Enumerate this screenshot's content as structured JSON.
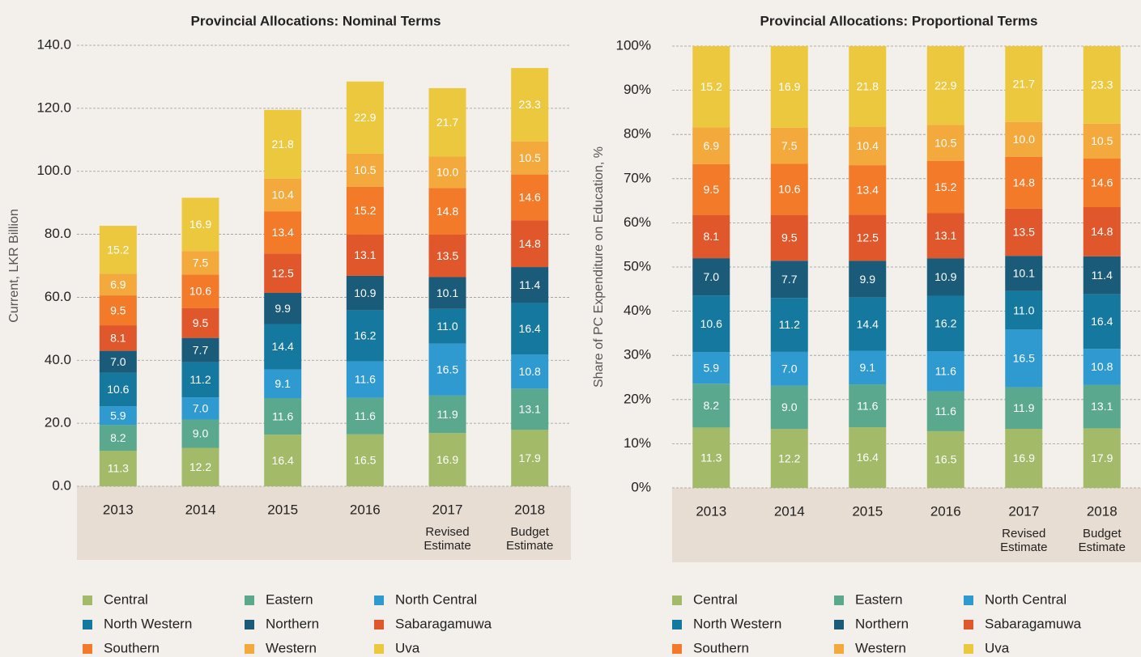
{
  "chart_data": [
    {
      "type": "bar",
      "stacking": "normal",
      "title": "Provincial Allocations: Nominal Terms",
      "y_label": "Current, LKR Billion",
      "categories": [
        "2013",
        "2014",
        "2015",
        "2016",
        "2017",
        "2018"
      ],
      "category_notes": [
        null,
        null,
        null,
        null,
        "Revised Estimate",
        "Budget Estimate"
      ],
      "ylim": [
        0,
        140
      ],
      "yticks": [
        {
          "value": 0,
          "label": "0.0"
        },
        {
          "value": 20,
          "label": "20.0"
        },
        {
          "value": 40,
          "label": "40.0"
        },
        {
          "value": 60,
          "label": "60.0"
        },
        {
          "value": 80,
          "label": "80.0"
        },
        {
          "value": 100,
          "label": "100.0"
        },
        {
          "value": 120,
          "label": "120.0"
        },
        {
          "value": 140,
          "label": "140.0"
        }
      ],
      "grid": true,
      "legend": "bottom",
      "series": [
        {
          "name": "Central",
          "color": "#a3bb68",
          "values": [
            11.3,
            12.2,
            16.4,
            16.5,
            16.9,
            17.9
          ],
          "value_labels": [
            "11.3",
            "12.2",
            "16.4",
            "16.5",
            "16.9",
            "17.9"
          ]
        },
        {
          "name": "Eastern",
          "color": "#5aa88e",
          "values": [
            8.2,
            9.0,
            11.6,
            11.6,
            11.9,
            13.1
          ],
          "value_labels": [
            "8.2",
            "9.0",
            "11.6",
            "11.6",
            "11.9",
            "13.1"
          ]
        },
        {
          "name": "North Central",
          "color": "#2e9ad0",
          "values": [
            5.9,
            7.0,
            9.1,
            11.6,
            16.5,
            10.8
          ],
          "value_labels": [
            "5.9",
            "7.0",
            "9.1",
            "11.6",
            "16.5",
            "10.8"
          ]
        },
        {
          "name": "North Western",
          "color": "#15789f",
          "values": [
            10.6,
            11.2,
            14.4,
            16.2,
            11.0,
            16.4
          ],
          "value_labels": [
            "10.6",
            "11.2",
            "14.4",
            "16.2",
            "11.0",
            "16.4"
          ]
        },
        {
          "name": "Northern",
          "color": "#1b5b7a",
          "values": [
            7.0,
            7.7,
            9.9,
            10.9,
            10.1,
            11.4
          ],
          "value_labels": [
            "7.0",
            "7.7",
            "9.9",
            "10.9",
            "10.1",
            "11.4"
          ]
        },
        {
          "name": "Sabaragamuwa",
          "color": "#e0572b",
          "values": [
            8.1,
            9.5,
            12.5,
            13.1,
            13.5,
            14.8
          ],
          "value_labels": [
            "8.1",
            "9.5",
            "12.5",
            "13.1",
            "13.5",
            "14.8"
          ]
        },
        {
          "name": "Southern",
          "color": "#f27a29",
          "values": [
            9.5,
            10.6,
            13.4,
            15.2,
            14.8,
            14.6
          ],
          "value_labels": [
            "9.5",
            "10.6",
            "13.4",
            "15.2",
            "14.8",
            "14.6"
          ]
        },
        {
          "name": "Western",
          "color": "#f3a93b",
          "values": [
            6.9,
            7.5,
            10.4,
            10.5,
            10.0,
            10.5
          ],
          "value_labels": [
            "6.9",
            "7.5",
            "10.4",
            "10.5",
            "10.0",
            "10.5"
          ]
        },
        {
          "name": "Uva",
          "color": "#ecc83f",
          "values": [
            15.2,
            16.9,
            21.8,
            22.9,
            21.7,
            23.3
          ],
          "value_labels": [
            "15.2",
            "16.9",
            "21.8",
            "22.9",
            "21.7",
            "23.3"
          ]
        }
      ]
    },
    {
      "type": "bar",
      "stacking": "percent",
      "title": "Provincial Allocations: Proportional Terms",
      "y_label": "Share of PC Expenditure on Education, %",
      "categories": [
        "2013",
        "2014",
        "2015",
        "2016",
        "2017",
        "2018"
      ],
      "category_notes": [
        null,
        null,
        null,
        null,
        "Revised Estimate",
        "Budget Estimate"
      ],
      "ylim": [
        0,
        100
      ],
      "yticks": [
        {
          "value": 0,
          "label": "0%"
        },
        {
          "value": 10,
          "label": "10%"
        },
        {
          "value": 20,
          "label": "20%"
        },
        {
          "value": 30,
          "label": "30%"
        },
        {
          "value": 40,
          "label": "40%"
        },
        {
          "value": 50,
          "label": "50%"
        },
        {
          "value": 60,
          "label": "60%"
        },
        {
          "value": 70,
          "label": "70%"
        },
        {
          "value": 80,
          "label": "80%"
        },
        {
          "value": 90,
          "label": "90%"
        },
        {
          "value": 100,
          "label": "100%"
        }
      ],
      "grid": true,
      "legend": "bottom",
      "series": [
        {
          "name": "Central",
          "color": "#a3bb68",
          "values": [
            11.3,
            12.2,
            16.4,
            16.5,
            16.9,
            17.9
          ],
          "value_labels": [
            "11.3",
            "12.2",
            "16.4",
            "16.5",
            "16.9",
            "17.9"
          ]
        },
        {
          "name": "Eastern",
          "color": "#5aa88e",
          "values": [
            8.2,
            9.0,
            11.6,
            11.6,
            11.9,
            13.1
          ],
          "value_labels": [
            "8.2",
            "9.0",
            "11.6",
            "11.6",
            "11.9",
            "13.1"
          ]
        },
        {
          "name": "North Central",
          "color": "#2e9ad0",
          "values": [
            5.9,
            7.0,
            9.1,
            11.6,
            16.5,
            10.8
          ],
          "value_labels": [
            "5.9",
            "7.0",
            "9.1",
            "11.6",
            "16.5",
            "10.8"
          ]
        },
        {
          "name": "North Western",
          "color": "#15789f",
          "values": [
            10.6,
            11.2,
            14.4,
            16.2,
            11.0,
            16.4
          ],
          "value_labels": [
            "10.6",
            "11.2",
            "14.4",
            "16.2",
            "11.0",
            "16.4"
          ]
        },
        {
          "name": "Northern",
          "color": "#1b5b7a",
          "values": [
            7.0,
            7.7,
            9.9,
            10.9,
            10.1,
            11.4
          ],
          "value_labels": [
            "7.0",
            "7.7",
            "9.9",
            "10.9",
            "10.1",
            "11.4"
          ]
        },
        {
          "name": "Sabaragamuwa",
          "color": "#e0572b",
          "values": [
            8.1,
            9.5,
            12.5,
            13.1,
            13.5,
            14.8
          ],
          "value_labels": [
            "8.1",
            "9.5",
            "12.5",
            "13.1",
            "13.5",
            "14.8"
          ]
        },
        {
          "name": "Southern",
          "color": "#f27a29",
          "values": [
            9.5,
            10.6,
            13.4,
            15.2,
            14.8,
            14.6
          ],
          "value_labels": [
            "9.5",
            "10.6",
            "13.4",
            "15.2",
            "14.8",
            "14.6"
          ]
        },
        {
          "name": "Western",
          "color": "#f3a93b",
          "values": [
            6.9,
            7.5,
            10.4,
            10.5,
            10.0,
            10.5
          ],
          "value_labels": [
            "6.9",
            "7.5",
            "10.4",
            "10.5",
            "10.0",
            "10.5"
          ]
        },
        {
          "name": "Uva",
          "color": "#ecc83f",
          "values": [
            15.2,
            16.9,
            21.8,
            22.9,
            21.7,
            23.3
          ],
          "value_labels": [
            "15.2",
            "16.9",
            "21.8",
            "22.9",
            "21.7",
            "23.3"
          ]
        }
      ]
    }
  ]
}
